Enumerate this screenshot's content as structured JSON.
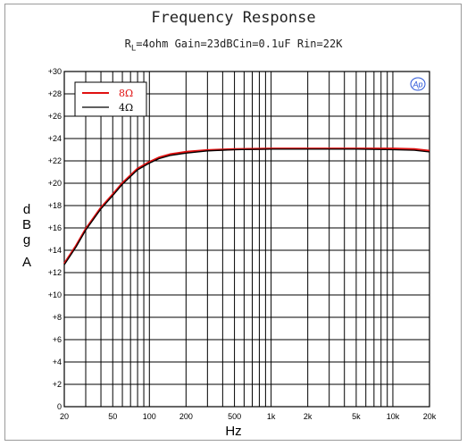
{
  "chart_data": {
    "type": "line",
    "title": "Frequency Response",
    "subtitle_parts": {
      "r": "R",
      "sub": "L",
      "rest": "=4ohm Gain=23dBCin=0.1uF Rin=22K"
    },
    "xlabel": "Hz",
    "ylabel_letters": [
      "d",
      "B",
      "g",
      "A"
    ],
    "x_scale": "log",
    "xlim": [
      20,
      20000
    ],
    "ylim": [
      0,
      30
    ],
    "x_ticks": [
      20,
      50,
      100,
      200,
      500,
      1000,
      2000,
      5000,
      10000,
      20000
    ],
    "x_tick_labels": [
      "20",
      "50",
      "100",
      "200",
      "500",
      "1k",
      "2k",
      "5k",
      "10k",
      "20k"
    ],
    "y_ticks": [
      0,
      2,
      4,
      6,
      8,
      10,
      12,
      14,
      16,
      18,
      20,
      22,
      24,
      26,
      28,
      30
    ],
    "y_tick_labels": [
      "0",
      "+2",
      "+4",
      "+6",
      "+8",
      "+10",
      "+12",
      "+14",
      "+16",
      "+18",
      "+20",
      "+22",
      "+24",
      "+26",
      "+28",
      "+30"
    ],
    "grid": true,
    "legend_position": "top-left",
    "logo_text": "Ap",
    "colors": {
      "series_8ohm": "#e01010",
      "series_4ohm": "#000000",
      "grid": "#000000",
      "logo": "#2a55d8"
    },
    "series": [
      {
        "name": "8Ω",
        "x": [
          20,
          25,
          30,
          40,
          50,
          60,
          70,
          80,
          100,
          120,
          150,
          200,
          300,
          500,
          1000,
          2000,
          5000,
          10000,
          15000,
          20000
        ],
        "y": [
          12.8,
          14.4,
          15.9,
          17.8,
          19.0,
          20.0,
          20.7,
          21.3,
          21.9,
          22.3,
          22.6,
          22.8,
          22.95,
          23.05,
          23.1,
          23.1,
          23.1,
          23.1,
          23.05,
          22.9
        ]
      },
      {
        "name": "4Ω",
        "x": [
          20,
          25,
          30,
          40,
          50,
          60,
          70,
          80,
          100,
          120,
          150,
          200,
          300,
          500,
          1000,
          2000,
          5000,
          10000,
          15000,
          20000
        ],
        "y": [
          12.7,
          14.3,
          15.8,
          17.7,
          18.9,
          19.9,
          20.6,
          21.2,
          21.8,
          22.2,
          22.5,
          22.7,
          22.9,
          23.0,
          23.05,
          23.05,
          23.05,
          23.0,
          22.95,
          22.8
        ]
      }
    ]
  }
}
